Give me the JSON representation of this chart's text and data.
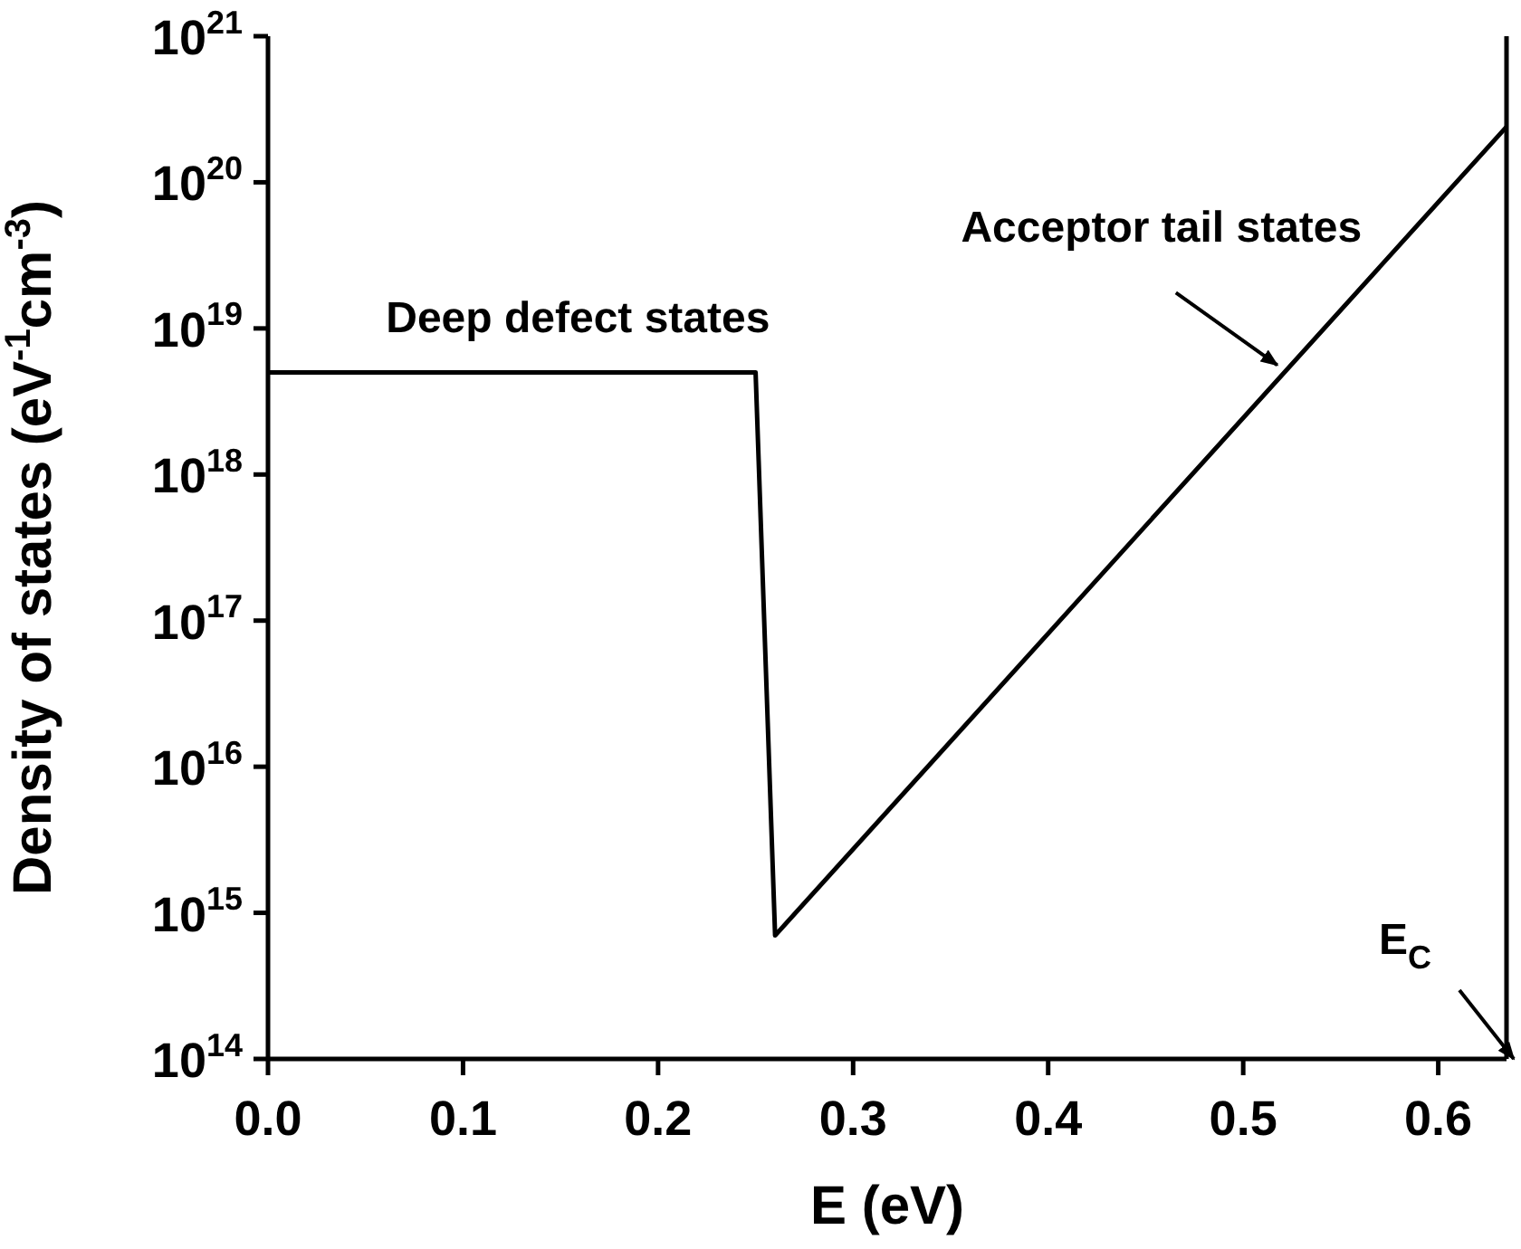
{
  "chart_data": {
    "type": "line",
    "xlabel": "E (eV)",
    "ylabel": "Density of states (eV$^{-1}$cm$^{-3}$)",
    "x": [
      0,
      0.25,
      0.26,
      0.635
    ],
    "series": [
      {
        "color": "#000000",
        "values": [
          5e+18,
          5e+18,
          700000000000000.0,
          2.4e+20
        ]
      }
    ],
    "log": "y",
    "xlim": [
      0,
      0.635
    ],
    "xticks": [
      {
        "value": 0,
        "label": "0.0"
      },
      0.1,
      0.2,
      0.3,
      0.4,
      0.5,
      0.6
    ],
    "ylim": [
      100000000000000.0,
      1e+21
    ],
    "yticks": [
      {
        "value": 100000000000000.0,
        "label": "10$^{14}$"
      },
      {
        "value": 1000000000000000.0,
        "label": "10$^{15}$"
      },
      {
        "value": 1e+16,
        "label": "10$^{16}$"
      },
      {
        "value": 1e+17,
        "label": "10$^{17}$"
      },
      {
        "value": 1e+18,
        "label": "10$^{18}$"
      },
      {
        "value": 1e+19,
        "label": "10$^{19}$"
      },
      {
        "value": 1e+20,
        "label": "10$^{20}$"
      },
      {
        "value": 1e+21,
        "label": "10$^{21}$"
      }
    ],
    "annotations": [
      {
        "text": "Deep defect states",
        "x": 0.158,
        "y": 5e+18
      },
      {
        "text": "Acceptor tail states",
        "x": 0.52,
        "y": 5e+18
      },
      "E$_{C}$"
    ],
    "grid": false,
    "legend": false,
    "marker": "none",
    "line_style": "solid"
  }
}
